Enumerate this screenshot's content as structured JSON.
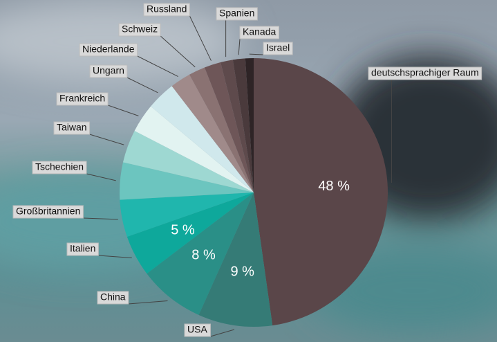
{
  "chart_data": {
    "type": "pie",
    "categories": [
      "deutschsprachiger Raum",
      "USA",
      "China",
      "Italien",
      "Großbritannien",
      "Tschechien",
      "Taiwan",
      "Frankreich",
      "Ungarn",
      "Niederlande",
      "Schweiz",
      "Russland",
      "Spanien",
      "Kanada",
      "Israel"
    ],
    "values": [
      48,
      9,
      8,
      5,
      4.5,
      4.5,
      4,
      3.5,
      3.5,
      2.5,
      2,
      2,
      1.5,
      1.5,
      1
    ],
    "value_labels": [
      "48 %",
      "9 %",
      "8 %",
      "5 %",
      null,
      null,
      null,
      null,
      null,
      null,
      null,
      null,
      null,
      null,
      null
    ],
    "colors": [
      "#5a4649",
      "#357b76",
      "#2a8f87",
      "#0ea89b",
      "#20b6ad",
      "#6cc5bf",
      "#9ed8d2",
      "#e2f3f1",
      "#d0e8ec",
      "#a08a8a",
      "#8a7272",
      "#6e5658",
      "#5e4a4c",
      "#4a3a3c",
      "#2e2426"
    ]
  }
}
